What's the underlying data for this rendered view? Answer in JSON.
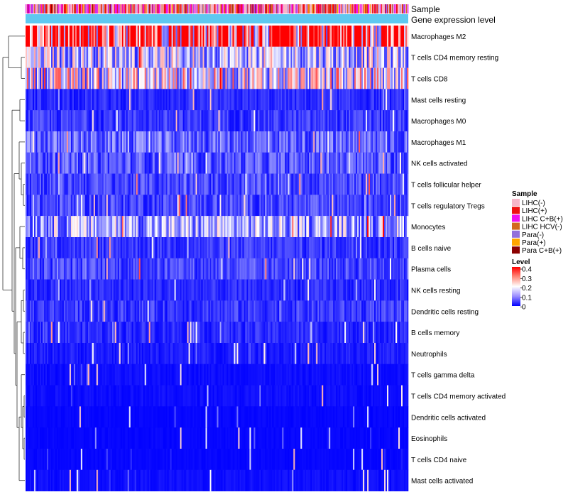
{
  "chart_data": {
    "type": "heatmap",
    "annotation_tracks": [
      {
        "name": "Sample"
      },
      {
        "name": "Gene expression level",
        "color": "#5ec8f0"
      }
    ],
    "rows": [
      "Macrophages M2",
      "T cells CD4 memory resting",
      "T cells CD8",
      "Mast cells resting",
      "Macrophages M0",
      "Macrophages M1",
      "NK cells activated",
      "T cells follicular helper",
      "T cells regulatory  Tregs",
      "Monocytes",
      "B cells naive",
      "Plasma cells",
      "NK cells resting",
      "Dendritic cells resting",
      "B cells memory",
      "Neutrophils",
      "T cells gamma delta",
      "T cells CD4 memory activated",
      "Dendritic cells activated",
      "Eosinophils",
      "T cells CD4 naive",
      "Mast cells activated"
    ],
    "row_mean_level": [
      0.33,
      0.14,
      0.17,
      0.03,
      0.04,
      0.07,
      0.06,
      0.05,
      0.05,
      0.12,
      0.04,
      0.05,
      0.03,
      0.04,
      0.03,
      0.02,
      0.01,
      0.01,
      0.005,
      0.005,
      0.005,
      0.01
    ],
    "num_samples": 540,
    "legend_sample": {
      "title": "Sample",
      "items": [
        {
          "label": "LIHC(-)",
          "color": "#f7b6c8"
        },
        {
          "label": "LIHC(+)",
          "color": "#ee1111"
        },
        {
          "label": "LIHC C+B(+)",
          "color": "#ee11ee"
        },
        {
          "label": "LIHC HCV(-)",
          "color": "#d2691e"
        },
        {
          "label": "Para(-)",
          "color": "#9370db"
        },
        {
          "label": "Para(+)",
          "color": "#ffa500"
        },
        {
          "label": "Para C+B(+)",
          "color": "#8b0000"
        }
      ]
    },
    "legend_level": {
      "title": "Level",
      "range": [
        0,
        0.4
      ],
      "ticks": [
        "0.4",
        "0.3",
        "0.2",
        "0.1",
        "0"
      ],
      "colors": [
        "#0000ff",
        "#ffffff",
        "#ff0000"
      ]
    },
    "dendrogram": "hierarchical clustering of rows"
  }
}
